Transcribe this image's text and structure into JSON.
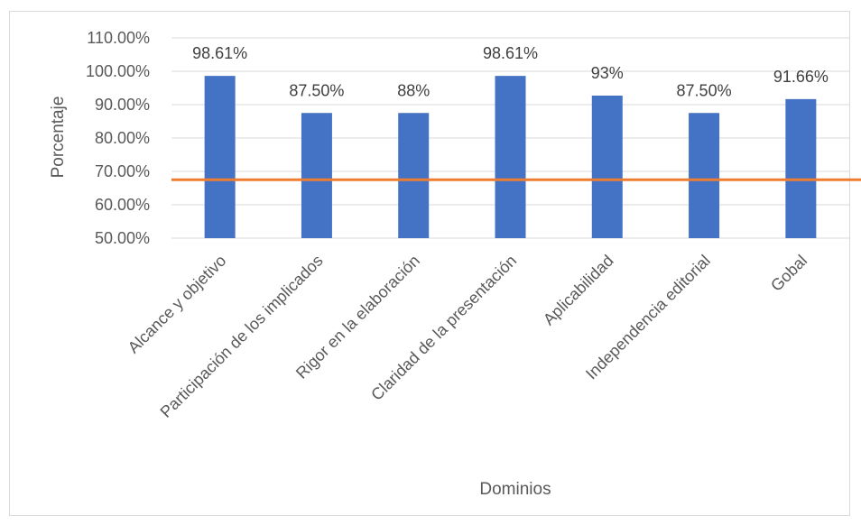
{
  "chart_data": {
    "type": "bar",
    "categories": [
      "Alcance y objetivo",
      "Participación de los implicados",
      "Rigor en la elaboración",
      "Claridad de la presentación",
      "Aplicabilidad",
      "Independencia editorial",
      "Gobal"
    ],
    "values": [
      98.61,
      87.5,
      87.5,
      98.61,
      92.7,
      87.5,
      91.66
    ],
    "data_labels": [
      "98.61%",
      "87.50%",
      "88%",
      "98.61%",
      "93%",
      "87.50%",
      "91.66%"
    ],
    "yticks": [
      "50.00%",
      "60.00%",
      "70.00%",
      "80.00%",
      "90.00%",
      "100.00%",
      "110.00%"
    ],
    "ylim": [
      50,
      110
    ],
    "xlabel": "Dominios",
    "ylabel": "Porcentaje",
    "reference_line": 67.5,
    "grid": true,
    "colors": {
      "bar": "#4472c4",
      "reference_line": "#ed7d31",
      "grid": "#d9d9d9"
    }
  }
}
